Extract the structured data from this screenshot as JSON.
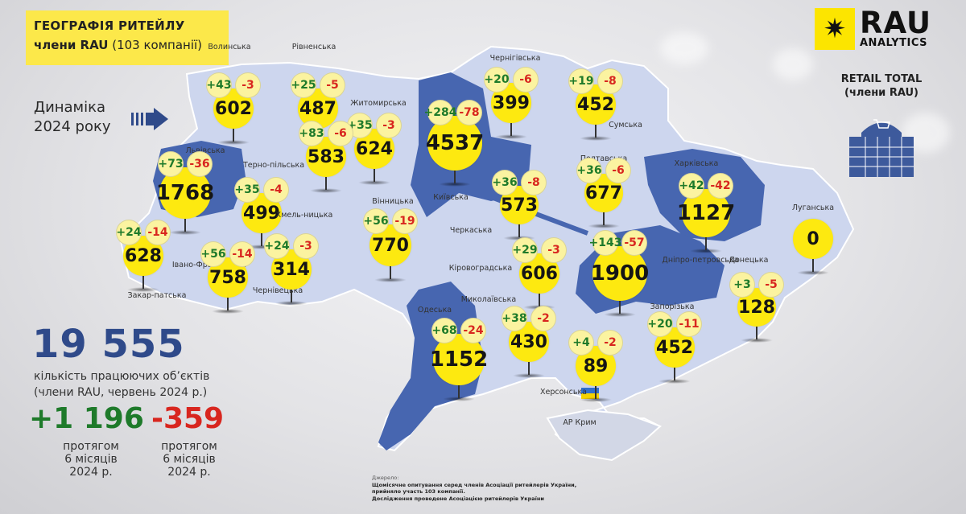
{
  "header": {
    "title_line1": "ГЕОГРАФІЯ РИТЕЙЛУ",
    "title_line2_bold": "члени RAU",
    "title_line2_rest": "(103 компанії)"
  },
  "dynamics": {
    "line1": "Динаміка",
    "line2": "2024 року"
  },
  "logo": {
    "brand": "RAU",
    "sub": "ANALYTICS"
  },
  "retail_total": {
    "line1": "RETAIL TOTAL",
    "line2": "(члени RAU)"
  },
  "summary": {
    "total": "19 555",
    "total_label_line1": "кількість працюючих об’єктів",
    "total_label_line2": "(члени RAU, червень 2024 р.)",
    "opened": "+1 196",
    "closed": "-359",
    "period_line1": "протягом",
    "period_line2": "6 місяців",
    "period_line3": "2024 р."
  },
  "colors": {
    "accent_yellow": "#fde910",
    "map_light": "#cdd6ee",
    "map_dark": "#4766b0",
    "plus": "#1e7a2a",
    "minus": "#d8261f",
    "total_blue": "#2f4a8a"
  },
  "regions": [
    {
      "name": "Волинська",
      "total": "602",
      "opened": "+43",
      "closed": "-3"
    },
    {
      "name": "Рівненська",
      "total": "487",
      "opened": "+25",
      "closed": "-5"
    },
    {
      "name": "Житомирська",
      "total": "624",
      "opened": "+35",
      "closed": "-3"
    },
    {
      "name": "Київська",
      "total": "4537",
      "opened": "+284",
      "closed": "-78"
    },
    {
      "name": "Чернігівська",
      "total": "399",
      "opened": "+20",
      "closed": "-6"
    },
    {
      "name": "Сумська",
      "total": "452",
      "opened": "+19",
      "closed": "-8"
    },
    {
      "name": "Львівська",
      "total": "1768",
      "opened": "+73",
      "closed": "-36"
    },
    {
      "name": "Терно-пільська",
      "total": "499",
      "opened": "+35",
      "closed": "-4"
    },
    {
      "name": "Хмель-ницька",
      "total": "583",
      "opened": "+83",
      "closed": "-6"
    },
    {
      "name": "Вінницька",
      "total": "770",
      "opened": "+56",
      "closed": "-19"
    },
    {
      "name": "Полтавська",
      "total": "677",
      "opened": "+36",
      "closed": "-6"
    },
    {
      "name": "Черкаська",
      "total": "573",
      "opened": "+36",
      "closed": "-8"
    },
    {
      "name": "Харківська",
      "total": "1127",
      "opened": "+42",
      "closed": "-42"
    },
    {
      "name": "Луганська",
      "total": "0",
      "opened": null,
      "closed": null
    },
    {
      "name": "Закар-патська",
      "total": "628",
      "opened": "+24",
      "closed": "-14"
    },
    {
      "name": "Івано-Франківська",
      "total": "758",
      "opened": "+56",
      "closed": "-14"
    },
    {
      "name": "Чернівецька",
      "total": "314",
      "opened": "+24",
      "closed": "-3"
    },
    {
      "name": "Кіровоградська",
      "total": "606",
      "opened": "+29",
      "closed": "-3"
    },
    {
      "name": "Дніпро-петровська",
      "total": "1900",
      "opened": "+143",
      "closed": "-57"
    },
    {
      "name": "Донецька",
      "total": "128",
      "opened": "+3",
      "closed": "-5"
    },
    {
      "name": "Одеська",
      "total": "1152",
      "opened": "+68",
      "closed": "-24"
    },
    {
      "name": "Миколаївська",
      "total": "430",
      "opened": "+38",
      "closed": "-2"
    },
    {
      "name": "Херсонська",
      "total": "89",
      "opened": "+4",
      "closed": "-2"
    },
    {
      "name": "Запорізька",
      "total": "452",
      "opened": "+20",
      "closed": "-11"
    },
    {
      "name": "АР Крим",
      "total": null,
      "opened": null,
      "closed": null
    }
  ],
  "source": {
    "heading": "Джерело:",
    "line1": "Щомісячне опитування серед членів Асоціації ритейлерів України,",
    "line2": "прийняло участь 103 компанії.",
    "line3": "Дослідження проведене Асоціацією ритейлерів України"
  }
}
